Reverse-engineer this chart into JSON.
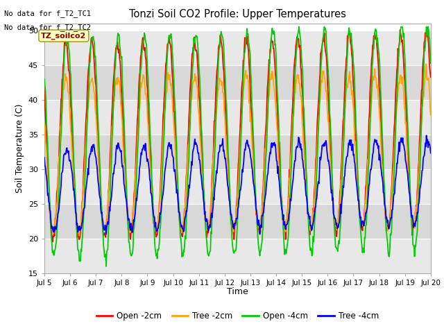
{
  "title": "Tonzi Soil CO2 Profile: Upper Temperatures",
  "ylabel": "Soil Temperature (C)",
  "xlabel": "Time",
  "ylim": [
    15,
    51
  ],
  "yticks": [
    15,
    20,
    25,
    30,
    35,
    40,
    45,
    50
  ],
  "fig_bg": "#ffffff",
  "plot_bg_light": "#e8e8e8",
  "plot_bg_dark": "#d0d0d0",
  "annotations": [
    "No data for f_T2_TC1",
    "No data for f_T2_TC2"
  ],
  "legend_label": "TZ_soilco2",
  "legend_entries": [
    "Open -2cm",
    "Tree -2cm",
    "Open -4cm",
    "Tree -4cm"
  ],
  "legend_colors": [
    "#ff0000",
    "#ffa500",
    "#00cc00",
    "#0000ff"
  ],
  "line_colors": {
    "open_2cm": "#ff0000",
    "tree_2cm": "#ffa500",
    "open_4cm": "#00cc00",
    "tree_4cm": "#0000ff"
  },
  "x_start": 5,
  "x_end": 20,
  "xtick_labels": [
    "Jul 5",
    "Jul 6",
    "Jul 7",
    "Jul 8",
    "Jul 9",
    "Jul 10",
    "Jul 11",
    "Jul 12",
    "Jul 13",
    "Jul 14",
    "Jul 15",
    "Jul 16",
    "Jul 17",
    "Jul 18",
    "Jul 19",
    "Jul 20"
  ],
  "xtick_positions": [
    5,
    6,
    7,
    8,
    9,
    10,
    11,
    12,
    13,
    14,
    15,
    16,
    17,
    18,
    19,
    20
  ]
}
